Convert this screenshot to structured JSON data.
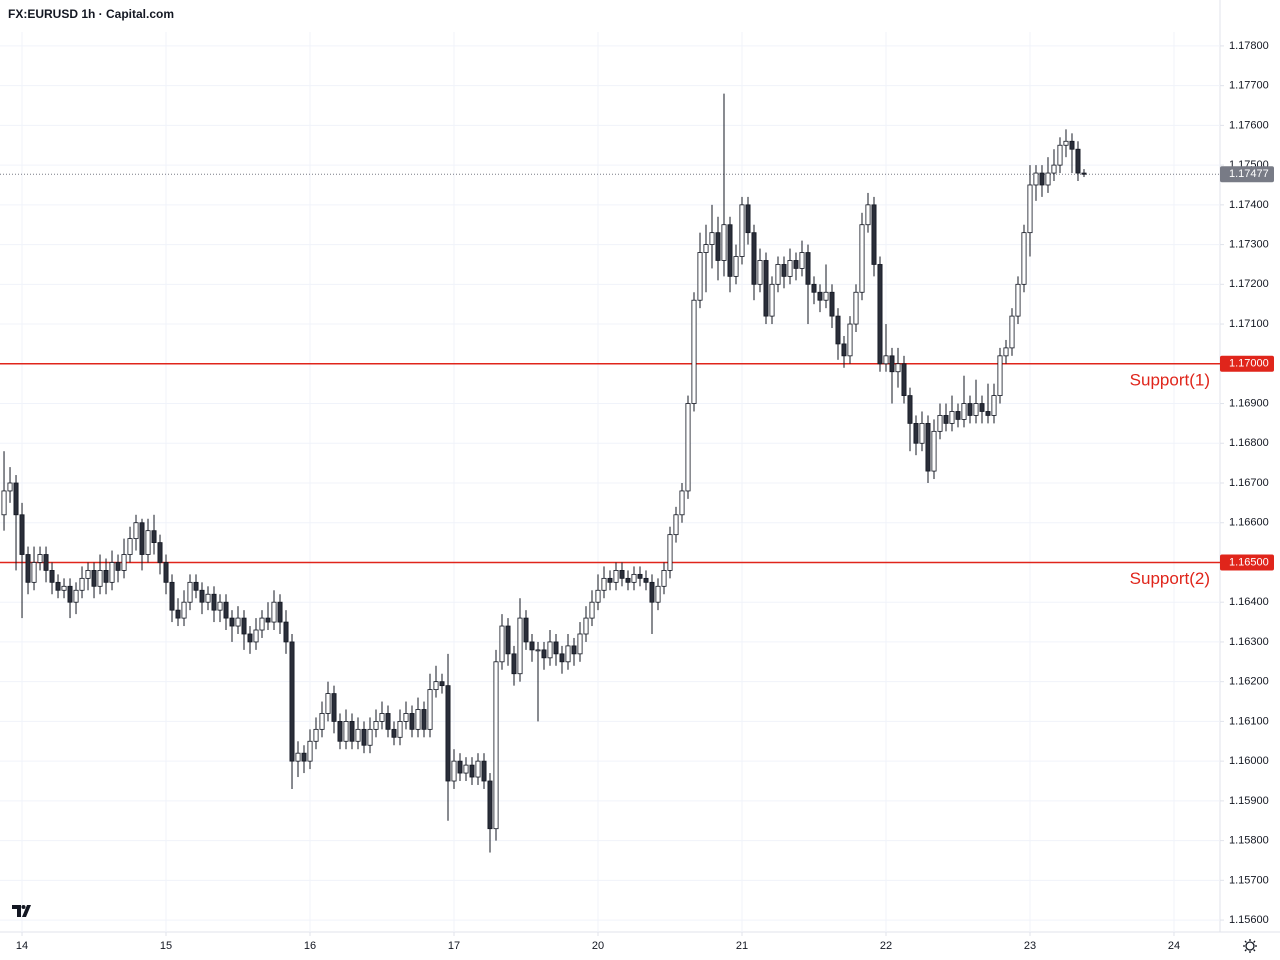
{
  "chart_data": {
    "type": "candlestick",
    "title": "FX:EURUSD 1h · Capital.com",
    "up_color": "#ffffff",
    "down_color": "#2a2e39",
    "outline_color": "#131722",
    "grid": true,
    "xlim": [
      -0.67,
      202.67
    ],
    "xticks": [
      {
        "value": 3,
        "label": "14"
      },
      {
        "value": 27,
        "label": "15"
      },
      {
        "value": 51,
        "label": "16"
      },
      {
        "value": 75,
        "label": "17"
      },
      {
        "value": 99,
        "label": "20"
      },
      {
        "value": 123,
        "label": "21"
      },
      {
        "value": 147,
        "label": "22"
      },
      {
        "value": 171,
        "label": "23"
      },
      {
        "value": 195,
        "label": "24"
      }
    ],
    "ylim": [
      1.1557,
      1.17835
    ],
    "yticks": [
      {
        "value": 1.156,
        "label": "1.15600"
      },
      {
        "value": 1.157,
        "label": "1.15700"
      },
      {
        "value": 1.158,
        "label": "1.15800"
      },
      {
        "value": 1.159,
        "label": "1.15900"
      },
      {
        "value": 1.16,
        "label": "1.16000"
      },
      {
        "value": 1.161,
        "label": "1.16100"
      },
      {
        "value": 1.162,
        "label": "1.16200"
      },
      {
        "value": 1.163,
        "label": "1.16300"
      },
      {
        "value": 1.164,
        "label": "1.16400"
      },
      {
        "value": 1.165,
        "label": "1.16500"
      },
      {
        "value": 1.166,
        "label": "1.16600"
      },
      {
        "value": 1.167,
        "label": "1.16700"
      },
      {
        "value": 1.168,
        "label": "1.16800"
      },
      {
        "value": 1.169,
        "label": "1.16900"
      },
      {
        "value": 1.17,
        "label": "1.17000"
      },
      {
        "value": 1.171,
        "label": "1.17100"
      },
      {
        "value": 1.172,
        "label": "1.17200"
      },
      {
        "value": 1.173,
        "label": "1.17300"
      },
      {
        "value": 1.174,
        "label": "1.17400"
      },
      {
        "value": 1.175,
        "label": "1.17500"
      },
      {
        "value": 1.176,
        "label": "1.17600"
      },
      {
        "value": 1.177,
        "label": "1.17700"
      },
      {
        "value": 1.178,
        "label": "1.17800"
      }
    ],
    "last_price": 1.17477,
    "last_price_color": "#787b86",
    "levels": [
      {
        "name": "Support(1)",
        "value": 1.17,
        "label": "1.17000",
        "color": "#e0251b"
      },
      {
        "name": "Support(2)",
        "value": 1.165,
        "label": "1.16500",
        "color": "#e0251b"
      }
    ],
    "ohlc": [
      [
        1.1662,
        1.1678,
        1.1658,
        1.1668
      ],
      [
        1.1668,
        1.1674,
        1.1665,
        1.167
      ],
      [
        1.167,
        1.1672,
        1.1648,
        1.1662
      ],
      [
        1.1662,
        1.1665,
        1.1636,
        1.1652
      ],
      [
        1.1652,
        1.1654,
        1.1642,
        1.1645
      ],
      [
        1.1645,
        1.1654,
        1.1643,
        1.165
      ],
      [
        1.165,
        1.1654,
        1.1648,
        1.1652
      ],
      [
        1.1652,
        1.1654,
        1.1645,
        1.1648
      ],
      [
        1.1648,
        1.165,
        1.1642,
        1.1645
      ],
      [
        1.1645,
        1.1647,
        1.1641,
        1.1643
      ],
      [
        1.1643,
        1.1646,
        1.1641,
        1.1644
      ],
      [
        1.1644,
        1.1646,
        1.1636,
        1.164
      ],
      [
        1.164,
        1.1645,
        1.1637,
        1.1643
      ],
      [
        1.1643,
        1.1649,
        1.1641,
        1.1646
      ],
      [
        1.1646,
        1.165,
        1.1643,
        1.1648
      ],
      [
        1.1648,
        1.165,
        1.1641,
        1.1644
      ],
      [
        1.1644,
        1.1652,
        1.1642,
        1.1648
      ],
      [
        1.1648,
        1.1651,
        1.1642,
        1.1645
      ],
      [
        1.1645,
        1.1653,
        1.1643,
        1.165
      ],
      [
        1.165,
        1.1652,
        1.1645,
        1.1648
      ],
      [
        1.1648,
        1.1656,
        1.1646,
        1.1652
      ],
      [
        1.1652,
        1.1659,
        1.165,
        1.1656
      ],
      [
        1.1656,
        1.1662,
        1.1653,
        1.166
      ],
      [
        1.166,
        1.1661,
        1.1648,
        1.1652
      ],
      [
        1.1652,
        1.1661,
        1.165,
        1.1658
      ],
      [
        1.1658,
        1.1662,
        1.1652,
        1.1655
      ],
      [
        1.1655,
        1.1657,
        1.1647,
        1.165
      ],
      [
        1.165,
        1.1652,
        1.1642,
        1.1645
      ],
      [
        1.1645,
        1.1647,
        1.1635,
        1.1638
      ],
      [
        1.1638,
        1.1641,
        1.1634,
        1.1636
      ],
      [
        1.1636,
        1.1643,
        1.1634,
        1.164
      ],
      [
        1.164,
        1.1647,
        1.1638,
        1.1645
      ],
      [
        1.1645,
        1.1647,
        1.1641,
        1.1643
      ],
      [
        1.1643,
        1.1645,
        1.1637,
        1.164
      ],
      [
        1.164,
        1.1644,
        1.1638,
        1.1642
      ],
      [
        1.1642,
        1.1644,
        1.1635,
        1.1638
      ],
      [
        1.1638,
        1.1642,
        1.1635,
        1.164
      ],
      [
        1.164,
        1.1642,
        1.1633,
        1.1636
      ],
      [
        1.1636,
        1.1638,
        1.163,
        1.1634
      ],
      [
        1.1634,
        1.1639,
        1.1632,
        1.1636
      ],
      [
        1.1636,
        1.1638,
        1.1628,
        1.1632
      ],
      [
        1.1632,
        1.1634,
        1.1627,
        1.163
      ],
      [
        1.163,
        1.1636,
        1.1628,
        1.1633
      ],
      [
        1.1633,
        1.1638,
        1.1631,
        1.1636
      ],
      [
        1.1636,
        1.164,
        1.1633,
        1.1635
      ],
      [
        1.1635,
        1.1643,
        1.1633,
        1.164
      ],
      [
        1.164,
        1.1642,
        1.1632,
        1.1635
      ],
      [
        1.1635,
        1.1638,
        1.1627,
        1.163
      ],
      [
        1.163,
        1.1632,
        1.1593,
        1.16
      ],
      [
        1.16,
        1.1605,
        1.1596,
        1.1602
      ],
      [
        1.1602,
        1.1604,
        1.1597,
        1.16
      ],
      [
        1.16,
        1.1608,
        1.1598,
        1.1605
      ],
      [
        1.1605,
        1.1611,
        1.1603,
        1.1608
      ],
      [
        1.1608,
        1.1615,
        1.1606,
        1.1612
      ],
      [
        1.1612,
        1.162,
        1.161,
        1.1617
      ],
      [
        1.1617,
        1.1619,
        1.1607,
        1.161
      ],
      [
        1.161,
        1.1612,
        1.1603,
        1.1605
      ],
      [
        1.1605,
        1.1613,
        1.1603,
        1.161
      ],
      [
        1.161,
        1.1612,
        1.1603,
        1.1605
      ],
      [
        1.1605,
        1.1611,
        1.1603,
        1.1608
      ],
      [
        1.1608,
        1.161,
        1.1602,
        1.1604
      ],
      [
        1.1604,
        1.1611,
        1.1602,
        1.1608
      ],
      [
        1.1608,
        1.1613,
        1.1606,
        1.161
      ],
      [
        1.161,
        1.1615,
        1.1608,
        1.1612
      ],
      [
        1.1612,
        1.1614,
        1.1606,
        1.1608
      ],
      [
        1.1608,
        1.161,
        1.1604,
        1.1606
      ],
      [
        1.1606,
        1.1613,
        1.1604,
        1.161
      ],
      [
        1.161,
        1.1615,
        1.1608,
        1.1612
      ],
      [
        1.1612,
        1.1614,
        1.1606,
        1.1608
      ],
      [
        1.1608,
        1.1616,
        1.1606,
        1.1613
      ],
      [
        1.1613,
        1.1615,
        1.1606,
        1.1608
      ],
      [
        1.1608,
        1.1622,
        1.1606,
        1.1618
      ],
      [
        1.1618,
        1.1624,
        1.1616,
        1.162
      ],
      [
        1.162,
        1.1622,
        1.1617,
        1.1619
      ],
      [
        1.1619,
        1.1627,
        1.1585,
        1.1595
      ],
      [
        1.1595,
        1.1603,
        1.1593,
        1.16
      ],
      [
        1.16,
        1.1602,
        1.1595,
        1.1597
      ],
      [
        1.1597,
        1.1601,
        1.1595,
        1.1599
      ],
      [
        1.1599,
        1.1601,
        1.1594,
        1.1596
      ],
      [
        1.1596,
        1.1602,
        1.1594,
        1.16
      ],
      [
        1.16,
        1.1602,
        1.1593,
        1.1595
      ],
      [
        1.1595,
        1.1597,
        1.1577,
        1.1583
      ],
      [
        1.1583,
        1.1628,
        1.158,
        1.1625
      ],
      [
        1.1625,
        1.1637,
        1.1623,
        1.1634
      ],
      [
        1.1634,
        1.1636,
        1.1624,
        1.1627
      ],
      [
        1.1627,
        1.1629,
        1.1619,
        1.1622
      ],
      [
        1.1622,
        1.1641,
        1.162,
        1.1636
      ],
      [
        1.1636,
        1.1638,
        1.1628,
        1.163
      ],
      [
        1.163,
        1.1632,
        1.1625,
        1.1628
      ],
      [
        1.1628,
        1.163,
        1.161,
        1.1628
      ],
      [
        1.1628,
        1.163,
        1.1623,
        1.1626
      ],
      [
        1.1626,
        1.1633,
        1.1624,
        1.163
      ],
      [
        1.163,
        1.1632,
        1.1624,
        1.1627
      ],
      [
        1.1627,
        1.1629,
        1.1622,
        1.1625
      ],
      [
        1.1625,
        1.1632,
        1.1623,
        1.1629
      ],
      [
        1.1629,
        1.1631,
        1.1624,
        1.1627
      ],
      [
        1.1627,
        1.1635,
        1.1625,
        1.1632
      ],
      [
        1.1632,
        1.1639,
        1.163,
        1.1636
      ],
      [
        1.1636,
        1.1643,
        1.1634,
        1.164
      ],
      [
        1.164,
        1.1647,
        1.1638,
        1.1643
      ],
      [
        1.1643,
        1.1649,
        1.1641,
        1.1646
      ],
      [
        1.1646,
        1.1648,
        1.1643,
        1.1645
      ],
      [
        1.1645,
        1.165,
        1.1643,
        1.1648
      ],
      [
        1.1648,
        1.165,
        1.1644,
        1.1646
      ],
      [
        1.1646,
        1.1648,
        1.1643,
        1.1645
      ],
      [
        1.1645,
        1.1649,
        1.1643,
        1.1647
      ],
      [
        1.1647,
        1.1649,
        1.1644,
        1.1646
      ],
      [
        1.1646,
        1.1648,
        1.1643,
        1.1645
      ],
      [
        1.1645,
        1.1647,
        1.1632,
        1.164
      ],
      [
        1.164,
        1.1646,
        1.1638,
        1.1644
      ],
      [
        1.1644,
        1.165,
        1.1642,
        1.1648
      ],
      [
        1.1648,
        1.1659,
        1.1646,
        1.1657
      ],
      [
        1.1657,
        1.1664,
        1.1655,
        1.1662
      ],
      [
        1.1662,
        1.167,
        1.166,
        1.1668
      ],
      [
        1.1668,
        1.1692,
        1.1666,
        1.169
      ],
      [
        1.169,
        1.1718,
        1.1688,
        1.1716
      ],
      [
        1.1716,
        1.1733,
        1.1714,
        1.1728
      ],
      [
        1.1728,
        1.1735,
        1.1718,
        1.173
      ],
      [
        1.173,
        1.174,
        1.1724,
        1.1733
      ],
      [
        1.1733,
        1.1737,
        1.1721,
        1.1726
      ],
      [
        1.1726,
        1.1768,
        1.1722,
        1.1735
      ],
      [
        1.1735,
        1.1737,
        1.1718,
        1.1722
      ],
      [
        1.1722,
        1.173,
        1.172,
        1.1727
      ],
      [
        1.1727,
        1.1742,
        1.1725,
        1.174
      ],
      [
        1.174,
        1.1742,
        1.173,
        1.1733
      ],
      [
        1.1733,
        1.1735,
        1.1716,
        1.172
      ],
      [
        1.172,
        1.1729,
        1.1718,
        1.1726
      ],
      [
        1.1726,
        1.1728,
        1.171,
        1.1712
      ],
      [
        1.1712,
        1.1722,
        1.171,
        1.172
      ],
      [
        1.172,
        1.1727,
        1.1718,
        1.1725
      ],
      [
        1.1725,
        1.1727,
        1.1719,
        1.1722
      ],
      [
        1.1722,
        1.1729,
        1.172,
        1.1726
      ],
      [
        1.1726,
        1.1728,
        1.1721,
        1.1724
      ],
      [
        1.1724,
        1.1731,
        1.1722,
        1.1728
      ],
      [
        1.1728,
        1.173,
        1.171,
        1.172
      ],
      [
        1.172,
        1.1722,
        1.1715,
        1.1718
      ],
      [
        1.1718,
        1.172,
        1.1713,
        1.1716
      ],
      [
        1.1716,
        1.1725,
        1.1714,
        1.1718
      ],
      [
        1.1718,
        1.172,
        1.1709,
        1.1712
      ],
      [
        1.1712,
        1.1714,
        1.1701,
        1.1705
      ],
      [
        1.1705,
        1.1707,
        1.1699,
        1.1702
      ],
      [
        1.1702,
        1.1712,
        1.17,
        1.171
      ],
      [
        1.171,
        1.172,
        1.1708,
        1.1718
      ],
      [
        1.1718,
        1.1738,
        1.1716,
        1.1735
      ],
      [
        1.1735,
        1.1743,
        1.1733,
        1.174
      ],
      [
        1.174,
        1.1742,
        1.1722,
        1.1725
      ],
      [
        1.1725,
        1.1727,
        1.1698,
        1.17
      ],
      [
        1.17,
        1.171,
        1.1698,
        1.1702
      ],
      [
        1.1702,
        1.1704,
        1.169,
        1.1698
      ],
      [
        1.1698,
        1.1704,
        1.1694,
        1.17
      ],
      [
        1.17,
        1.1702,
        1.169,
        1.1692
      ],
      [
        1.1692,
        1.1694,
        1.1678,
        1.1685
      ],
      [
        1.1685,
        1.1687,
        1.1677,
        1.168
      ],
      [
        1.168,
        1.1688,
        1.1678,
        1.1685
      ],
      [
        1.1685,
        1.1687,
        1.167,
        1.1673
      ],
      [
        1.1673,
        1.1686,
        1.1671,
        1.1683
      ],
      [
        1.1683,
        1.169,
        1.1681,
        1.1687
      ],
      [
        1.1687,
        1.169,
        1.1683,
        1.1685
      ],
      [
        1.1685,
        1.1692,
        1.1683,
        1.1688
      ],
      [
        1.1688,
        1.169,
        1.1684,
        1.1686
      ],
      [
        1.1686,
        1.1697,
        1.1684,
        1.169
      ],
      [
        1.169,
        1.1692,
        1.1685,
        1.1687
      ],
      [
        1.1687,
        1.1696,
        1.1685,
        1.169
      ],
      [
        1.169,
        1.1692,
        1.1685,
        1.1688
      ],
      [
        1.1688,
        1.1695,
        1.1685,
        1.1687
      ],
      [
        1.1687,
        1.1695,
        1.1685,
        1.1692
      ],
      [
        1.1692,
        1.1704,
        1.169,
        1.1702
      ],
      [
        1.1702,
        1.1706,
        1.17,
        1.1704
      ],
      [
        1.1704,
        1.1714,
        1.1702,
        1.1712
      ],
      [
        1.1712,
        1.1722,
        1.171,
        1.172
      ],
      [
        1.172,
        1.1735,
        1.1718,
        1.1733
      ],
      [
        1.1733,
        1.175,
        1.1727,
        1.1745
      ],
      [
        1.1745,
        1.175,
        1.1741,
        1.1748
      ],
      [
        1.1748,
        1.175,
        1.1742,
        1.1745
      ],
      [
        1.1745,
        1.1752,
        1.1743,
        1.1748
      ],
      [
        1.1748,
        1.1754,
        1.1746,
        1.175
      ],
      [
        1.175,
        1.1757,
        1.1748,
        1.1755
      ],
      [
        1.1755,
        1.1759,
        1.1752,
        1.1756
      ],
      [
        1.1756,
        1.1758,
        1.1748,
        1.1754
      ],
      [
        1.1754,
        1.1756,
        1.1746,
        1.1748
      ],
      [
        1.1748,
        1.1749,
        1.1747,
        1.17477
      ]
    ]
  }
}
